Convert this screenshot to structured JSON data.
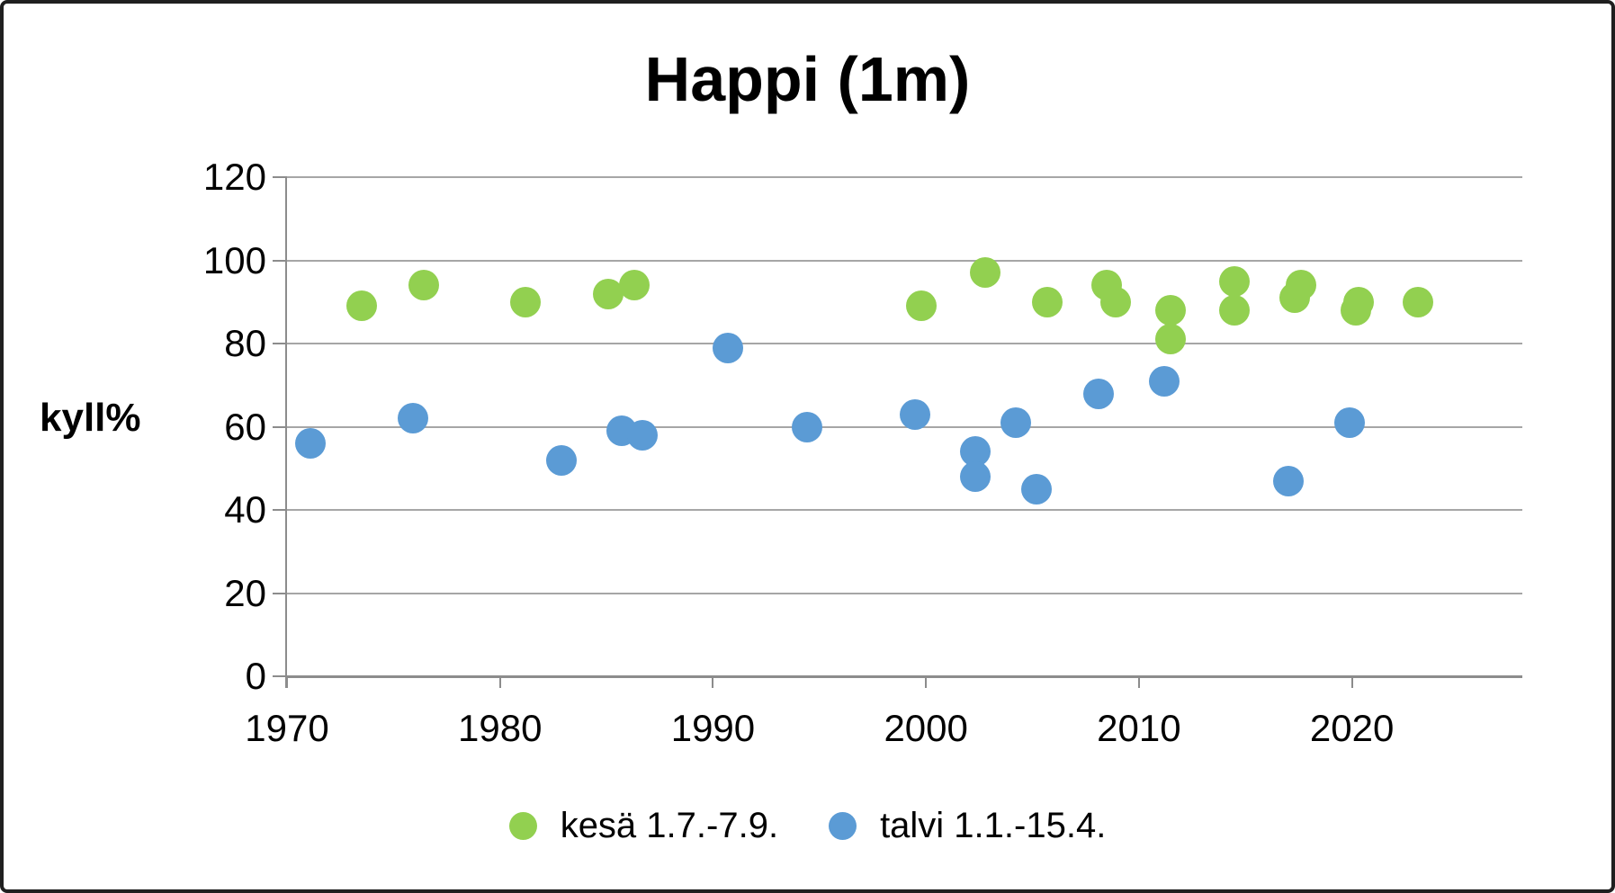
{
  "title": "Happi (1m)",
  "y_axis": {
    "title": "kyll%",
    "tick_labels": [
      "0",
      "20",
      "40",
      "60",
      "80",
      "100",
      "120"
    ]
  },
  "x_axis": {
    "tick_labels": [
      "1970",
      "1980",
      "1990",
      "2000",
      "2010",
      "2020"
    ]
  },
  "legend": {
    "items": [
      {
        "label": "kesä 1.7.-7.9.",
        "color": "#92d050",
        "marker": "circle-icon"
      },
      {
        "label": "talvi 1.1.-15.4.",
        "color": "#5b9bd5",
        "marker": "circle-icon"
      }
    ]
  },
  "chart_data": {
    "type": "scatter",
    "title": "Happi (1m)",
    "xlabel": "",
    "ylabel": "kyll%",
    "xlim": [
      1970,
      2028
    ],
    "ylim": [
      0,
      120
    ],
    "x_ticks": [
      1970,
      1980,
      1990,
      2000,
      2010,
      2020
    ],
    "y_ticks": [
      0,
      20,
      40,
      60,
      80,
      100,
      120
    ],
    "grid": "horizontal",
    "gridline_color": "#a6a6a6",
    "legend_position": "bottom",
    "series": [
      {
        "name": "kesä 1.7.-7.9.",
        "color": "#92d050",
        "points": [
          [
            1973.5,
            89
          ],
          [
            1976.4,
            94
          ],
          [
            1981.2,
            90
          ],
          [
            1985.1,
            92
          ],
          [
            1986.3,
            94
          ],
          [
            1999.8,
            89
          ],
          [
            2002.8,
            97
          ],
          [
            2005.7,
            90
          ],
          [
            2008.5,
            94
          ],
          [
            2008.9,
            90
          ],
          [
            2011.5,
            88
          ],
          [
            2011.5,
            81
          ],
          [
            2014.5,
            95
          ],
          [
            2014.5,
            88
          ],
          [
            2017.3,
            91
          ],
          [
            2017.6,
            94
          ],
          [
            2020.2,
            88
          ],
          [
            2020.3,
            90
          ],
          [
            2023.1,
            90
          ]
        ]
      },
      {
        "name": "talvi 1.1.-15.4.",
        "color": "#5b9bd5",
        "points": [
          [
            1971.1,
            56
          ],
          [
            1975.9,
            62
          ],
          [
            1982.9,
            52
          ],
          [
            1985.7,
            59
          ],
          [
            1986.7,
            58
          ],
          [
            1990.7,
            79
          ],
          [
            1994.4,
            60
          ],
          [
            1999.5,
            63
          ],
          [
            2002.3,
            54
          ],
          [
            2002.3,
            48
          ],
          [
            2004.2,
            61
          ],
          [
            2005.2,
            45
          ],
          [
            2008.1,
            68
          ],
          [
            2011.2,
            71
          ],
          [
            2017.0,
            47
          ],
          [
            2019.9,
            61
          ]
        ]
      }
    ]
  }
}
